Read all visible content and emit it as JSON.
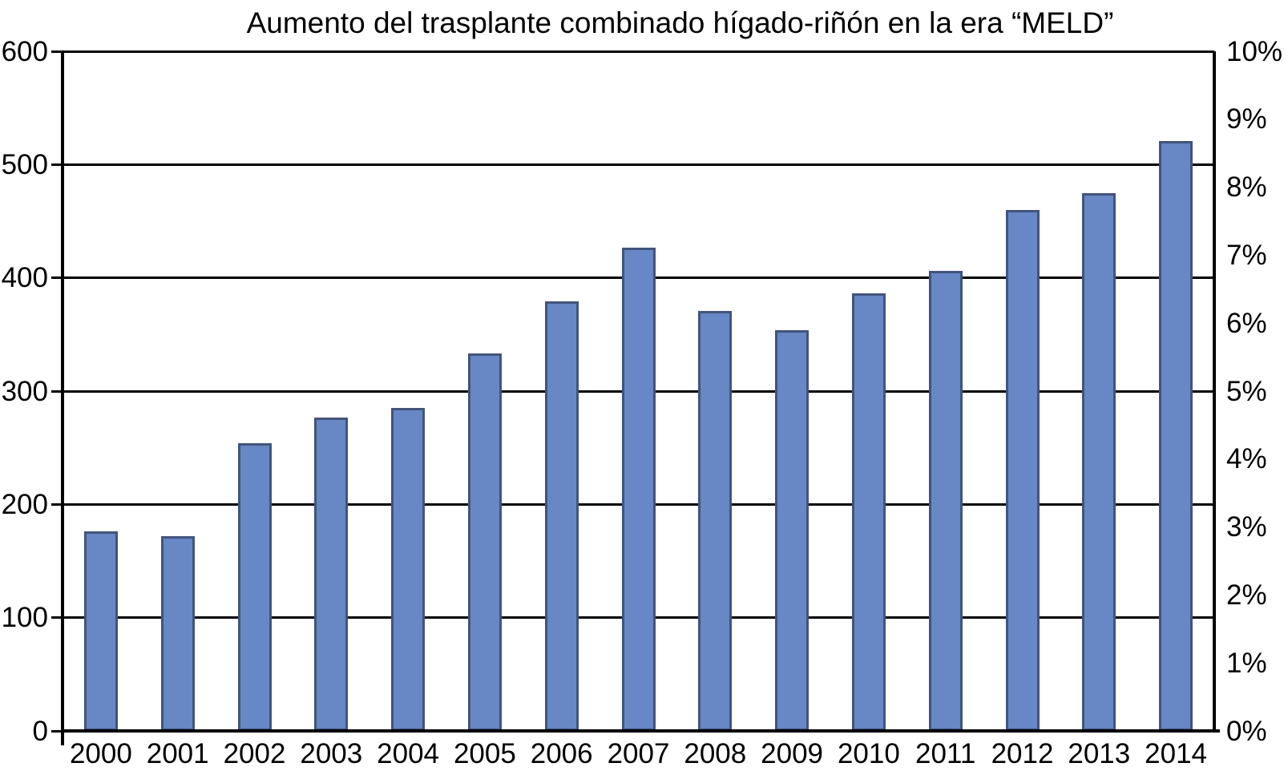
{
  "chart_data": {
    "type": "bar",
    "title": "Aumento del trasplante combinado hígado-riñón en la era “MELD”",
    "categories": [
      "2000",
      "2001",
      "2002",
      "2003",
      "2004",
      "2005",
      "2006",
      "2007",
      "2008",
      "2009",
      "2010",
      "2011",
      "2012",
      "2013",
      "2014"
    ],
    "values": [
      176,
      172,
      254,
      277,
      285,
      333,
      379,
      427,
      371,
      354,
      386,
      406,
      460,
      475,
      521
    ],
    "xlabel": "",
    "ylabel_left": "",
    "ylabel_right": "",
    "left_axis": {
      "min": 0,
      "max": 600,
      "step": 100,
      "tick_labels": [
        "0",
        "100",
        "200",
        "300",
        "400",
        "500",
        "600"
      ]
    },
    "right_axis": {
      "min": 0,
      "max": 10,
      "step": 1,
      "tick_labels": [
        "0%",
        "1%",
        "2%",
        "3%",
        "4%",
        "5%",
        "6%",
        "7%",
        "8%",
        "9%",
        "10%"
      ]
    },
    "grid": "horizontal",
    "legend": "none",
    "colors": {
      "bar_fill": "#6787C5",
      "bar_border": "#42547C",
      "axis": "#000000",
      "text": "#000000",
      "background": "#ffffff"
    }
  }
}
